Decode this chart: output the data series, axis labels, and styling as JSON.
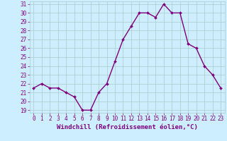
{
  "x": [
    0,
    1,
    2,
    3,
    4,
    5,
    6,
    7,
    8,
    9,
    10,
    11,
    12,
    13,
    14,
    15,
    16,
    17,
    18,
    19,
    20,
    21,
    22,
    23
  ],
  "y": [
    21.5,
    22.0,
    21.5,
    21.5,
    21.0,
    20.5,
    19.0,
    19.0,
    21.0,
    22.0,
    24.5,
    27.0,
    28.5,
    30.0,
    30.0,
    29.5,
    31.0,
    30.0,
    30.0,
    26.5,
    26.0,
    24.0,
    23.0,
    21.5
  ],
  "line_color": "#800080",
  "marker": "D",
  "marker_size": 2.0,
  "bg_color": "#cceeff",
  "grid_color": "#aacccc",
  "xlabel": "Windchill (Refroidissement éolien,°C)",
  "ylim": [
    19,
    31
  ],
  "xlim": [
    -0.5,
    23.5
  ],
  "yticks": [
    19,
    20,
    21,
    22,
    23,
    24,
    25,
    26,
    27,
    28,
    29,
    30,
    31
  ],
  "xticks": [
    0,
    1,
    2,
    3,
    4,
    5,
    6,
    7,
    8,
    9,
    10,
    11,
    12,
    13,
    14,
    15,
    16,
    17,
    18,
    19,
    20,
    21,
    22,
    23
  ],
  "label_color": "#800080",
  "tick_fontsize": 5.5,
  "xlabel_fontsize": 6.5,
  "line_width": 1.0
}
